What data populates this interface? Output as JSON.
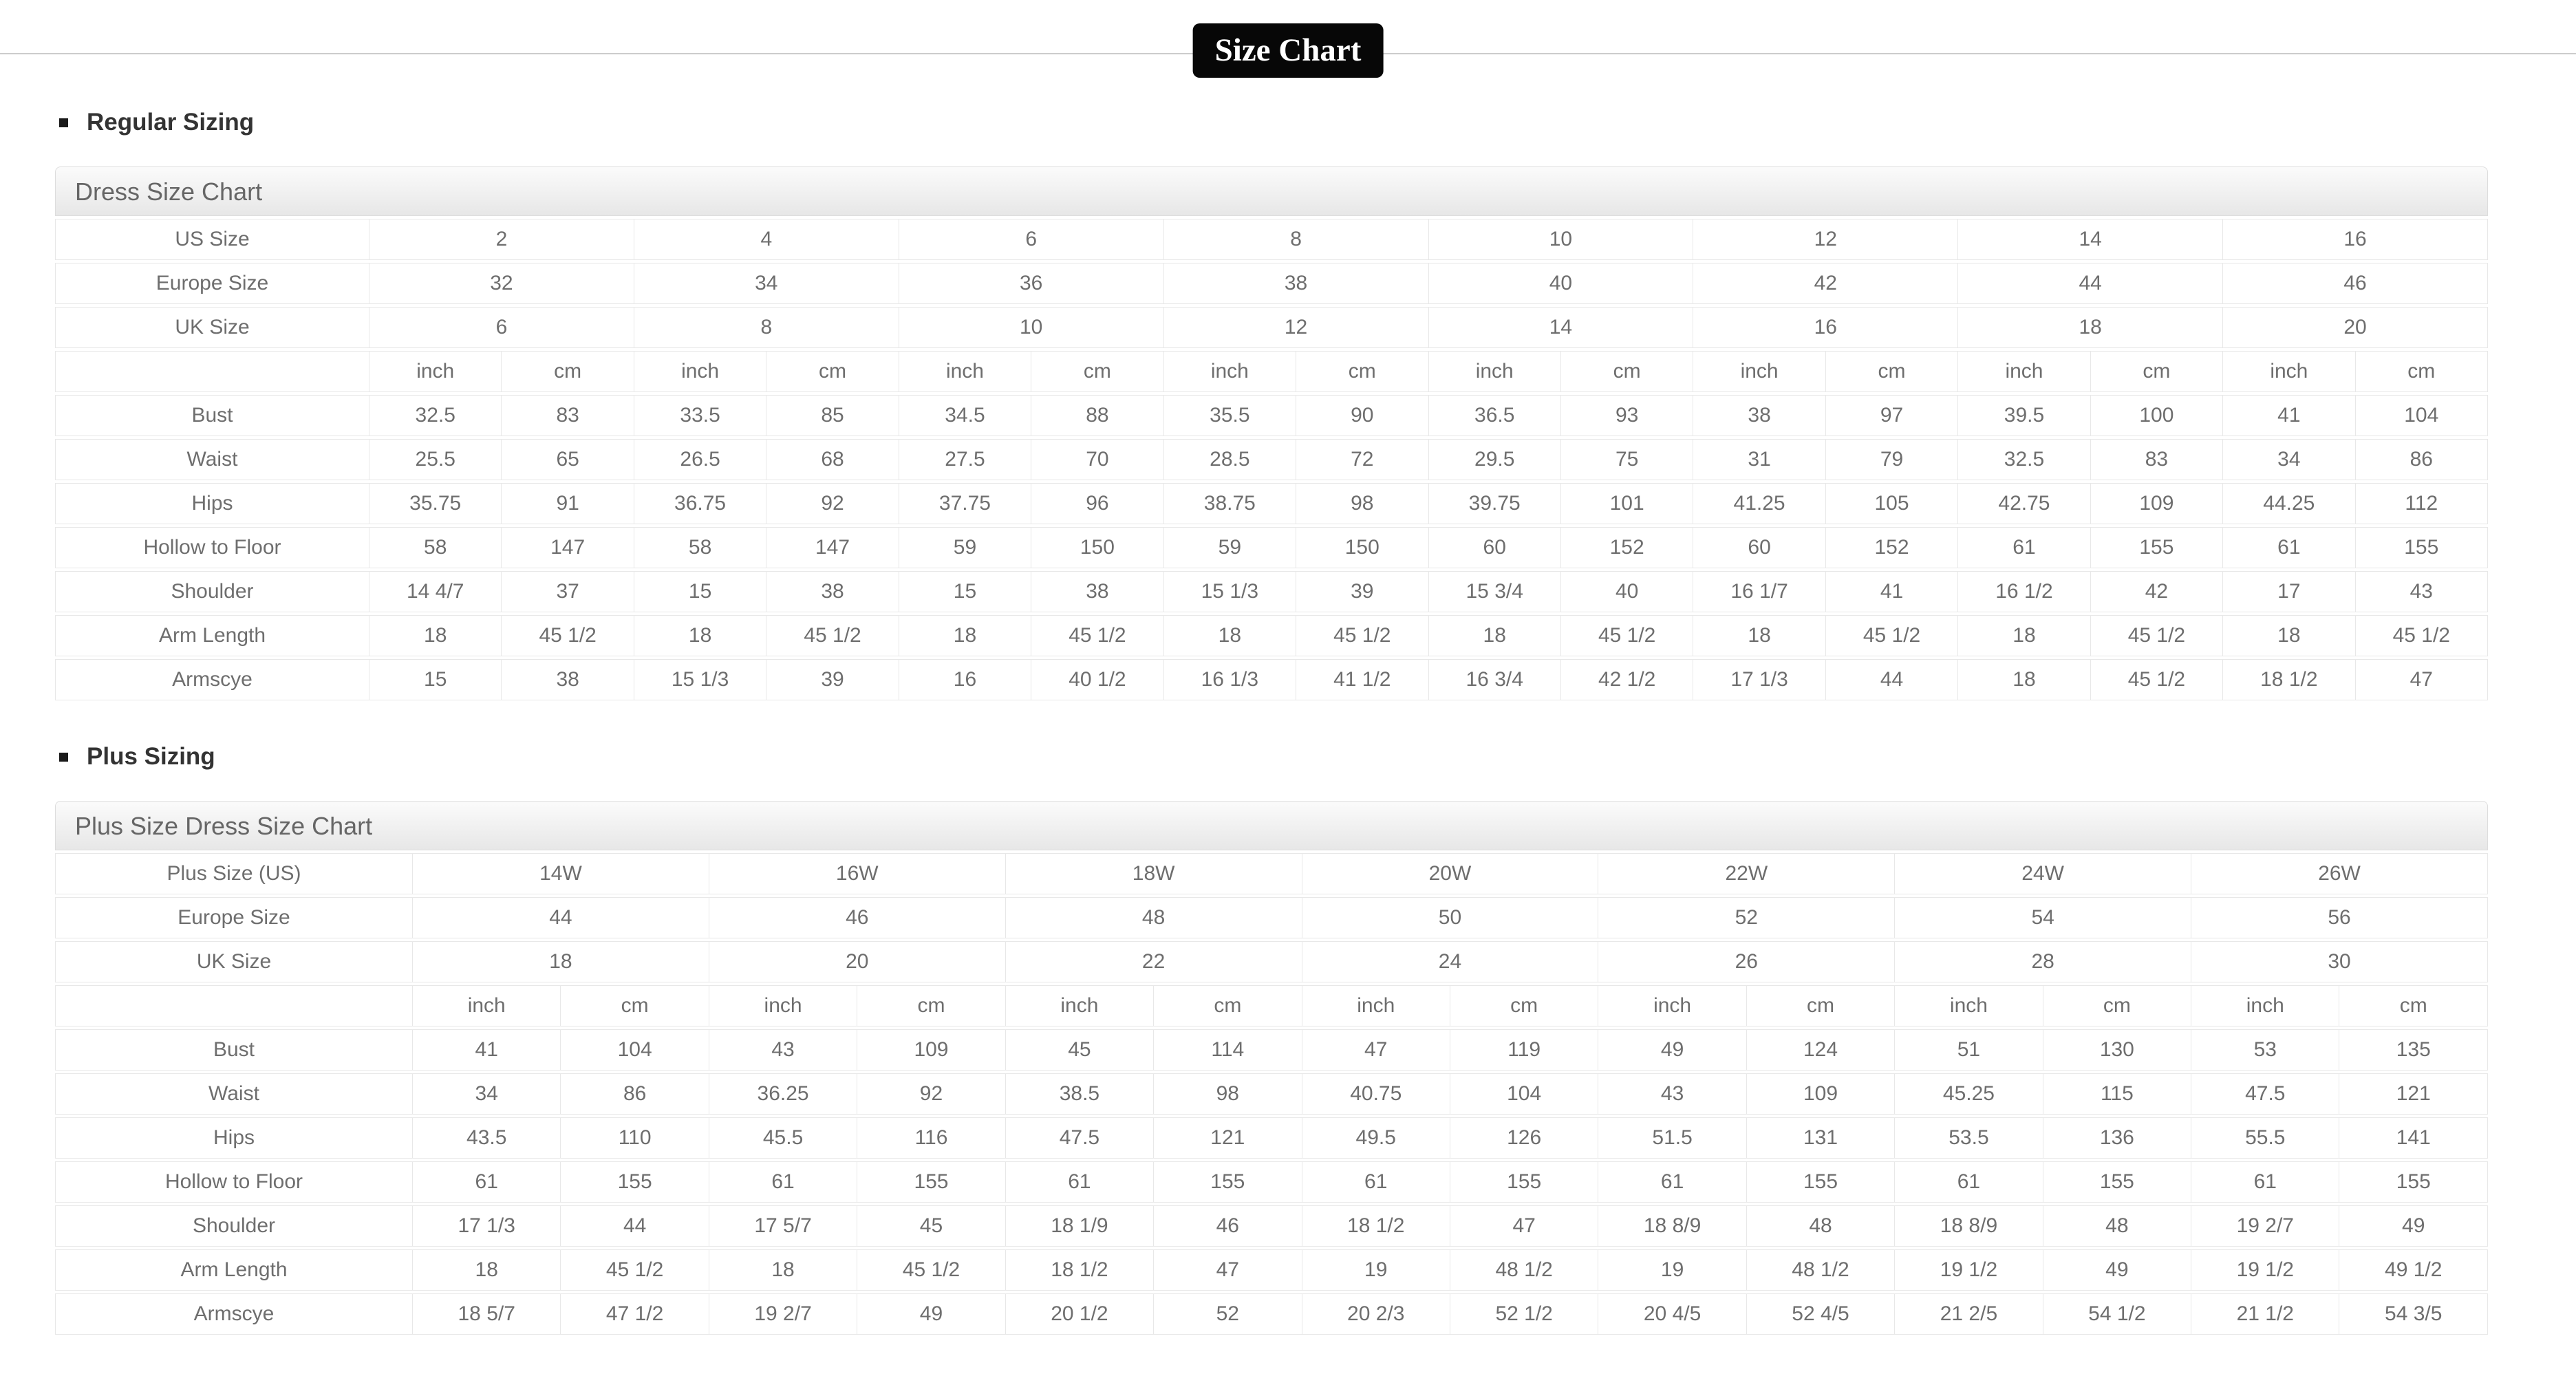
{
  "page": {
    "title_badge": "Size Chart"
  },
  "sections": [
    {
      "heading": "Regular Sizing",
      "caption": "Dress Size Chart",
      "unit_labels": [
        "inch",
        "cm"
      ],
      "size_rows": [
        {
          "label": "US Size",
          "values": [
            "2",
            "4",
            "6",
            "8",
            "10",
            "12",
            "14",
            "16"
          ]
        },
        {
          "label": "Europe Size",
          "values": [
            "32",
            "34",
            "36",
            "38",
            "40",
            "42",
            "44",
            "46"
          ]
        },
        {
          "label": "UK Size",
          "values": [
            "6",
            "8",
            "10",
            "12",
            "14",
            "16",
            "18",
            "20"
          ]
        }
      ],
      "measure_rows": [
        {
          "label": "Bust",
          "values": [
            "32.5",
            "83",
            "33.5",
            "85",
            "34.5",
            "88",
            "35.5",
            "90",
            "36.5",
            "93",
            "38",
            "97",
            "39.5",
            "100",
            "41",
            "104"
          ]
        },
        {
          "label": "Waist",
          "values": [
            "25.5",
            "65",
            "26.5",
            "68",
            "27.5",
            "70",
            "28.5",
            "72",
            "29.5",
            "75",
            "31",
            "79",
            "32.5",
            "83",
            "34",
            "86"
          ]
        },
        {
          "label": "Hips",
          "values": [
            "35.75",
            "91",
            "36.75",
            "92",
            "37.75",
            "96",
            "38.75",
            "98",
            "39.75",
            "101",
            "41.25",
            "105",
            "42.75",
            "109",
            "44.25",
            "112"
          ]
        },
        {
          "label": "Hollow to Floor",
          "values": [
            "58",
            "147",
            "58",
            "147",
            "59",
            "150",
            "59",
            "150",
            "60",
            "152",
            "60",
            "152",
            "61",
            "155",
            "61",
            "155"
          ]
        },
        {
          "label": "Shoulder",
          "values": [
            "14 4/7",
            "37",
            "15",
            "38",
            "15",
            "38",
            "15 1/3",
            "39",
            "15 3/4",
            "40",
            "16 1/7",
            "41",
            "16 1/2",
            "42",
            "17",
            "43"
          ]
        },
        {
          "label": "Arm Length",
          "values": [
            "18",
            "45 1/2",
            "18",
            "45 1/2",
            "18",
            "45 1/2",
            "18",
            "45 1/2",
            "18",
            "45 1/2",
            "18",
            "45 1/2",
            "18",
            "45 1/2",
            "18",
            "45 1/2"
          ]
        },
        {
          "label": "Armscye",
          "values": [
            "15",
            "38",
            "15 1/3",
            "39",
            "16",
            "40 1/2",
            "16 1/3",
            "41 1/2",
            "16 3/4",
            "42 1/2",
            "17 1/3",
            "44",
            "18",
            "45 1/2",
            "18 1/2",
            "47"
          ]
        }
      ]
    },
    {
      "heading": "Plus Sizing",
      "caption": "Plus Size Dress Size Chart",
      "unit_labels": [
        "inch",
        "cm"
      ],
      "size_rows": [
        {
          "label": "Plus Size (US)",
          "values": [
            "14W",
            "16W",
            "18W",
            "20W",
            "22W",
            "24W",
            "26W"
          ]
        },
        {
          "label": "Europe Size",
          "values": [
            "44",
            "46",
            "48",
            "50",
            "52",
            "54",
            "56"
          ]
        },
        {
          "label": "UK Size",
          "values": [
            "18",
            "20",
            "22",
            "24",
            "26",
            "28",
            "30"
          ]
        }
      ],
      "measure_rows": [
        {
          "label": "Bust",
          "values": [
            "41",
            "104",
            "43",
            "109",
            "45",
            "114",
            "47",
            "119",
            "49",
            "124",
            "51",
            "130",
            "53",
            "135"
          ]
        },
        {
          "label": "Waist",
          "values": [
            "34",
            "86",
            "36.25",
            "92",
            "38.5",
            "98",
            "40.75",
            "104",
            "43",
            "109",
            "45.25",
            "115",
            "47.5",
            "121"
          ]
        },
        {
          "label": "Hips",
          "values": [
            "43.5",
            "110",
            "45.5",
            "116",
            "47.5",
            "121",
            "49.5",
            "126",
            "51.5",
            "131",
            "53.5",
            "136",
            "55.5",
            "141"
          ]
        },
        {
          "label": "Hollow to Floor",
          "values": [
            "61",
            "155",
            "61",
            "155",
            "61",
            "155",
            "61",
            "155",
            "61",
            "155",
            "61",
            "155",
            "61",
            "155"
          ]
        },
        {
          "label": "Shoulder",
          "values": [
            "17 1/3",
            "44",
            "17 5/7",
            "45",
            "18 1/9",
            "46",
            "18 1/2",
            "47",
            "18 8/9",
            "48",
            "18 8/9",
            "48",
            "19 2/7",
            "49"
          ]
        },
        {
          "label": "Arm Length",
          "values": [
            "18",
            "45 1/2",
            "18",
            "45 1/2",
            "18 1/2",
            "47",
            "19",
            "48 1/2",
            "19",
            "48 1/2",
            "19 1/2",
            "49",
            "19 1/2",
            "49 1/2"
          ]
        },
        {
          "label": "Armscye",
          "values": [
            "18 5/7",
            "47 1/2",
            "19 2/7",
            "49",
            "20 1/2",
            "52",
            "20 2/3",
            "52 1/2",
            "20 4/5",
            "52 4/5",
            "21 2/5",
            "54 1/2",
            "21 1/2",
            "54 3/5"
          ]
        }
      ]
    }
  ],
  "colors": {
    "badge_bg": "#070707",
    "badge_text": "#ffffff",
    "cell_text": "#6e6e6e",
    "border": "#e8e8e8"
  }
}
